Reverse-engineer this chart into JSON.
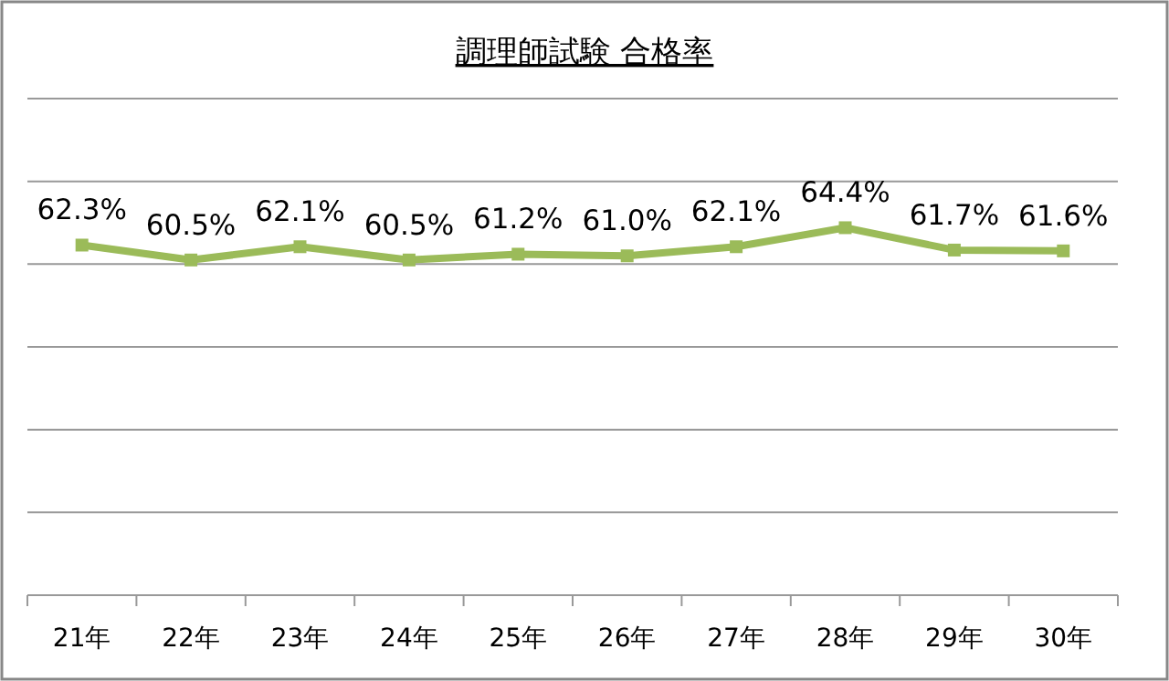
{
  "chart_data": {
    "type": "line",
    "title": "調理師試験 合格率",
    "categories": [
      "21年",
      "22年",
      "23年",
      "24年",
      "25年",
      "26年",
      "27年",
      "28年",
      "29年",
      "30年"
    ],
    "values": [
      62.3,
      60.5,
      62.1,
      60.5,
      61.2,
      61.0,
      62.1,
      64.4,
      61.7,
      61.6
    ],
    "value_labels": [
      "62.3%",
      "60.5%",
      "62.1%",
      "60.5%",
      "61.2%",
      "61.0%",
      "62.1%",
      "64.4%",
      "61.7%",
      "61.6%"
    ],
    "color": "#9bbb59",
    "marker": "square",
    "line_style": "solid",
    "ylim": [
      20,
      80
    ],
    "yticks": [
      {
        "value": 20,
        "label": null
      },
      {
        "value": 30,
        "label": null
      },
      {
        "value": 40,
        "label": null
      },
      {
        "value": 50,
        "label": null
      },
      {
        "value": 60,
        "label": null
      },
      {
        "value": 70,
        "label": null
      },
      {
        "value": 80,
        "label": null
      }
    ],
    "tick_labels": "x",
    "grid": "y"
  }
}
